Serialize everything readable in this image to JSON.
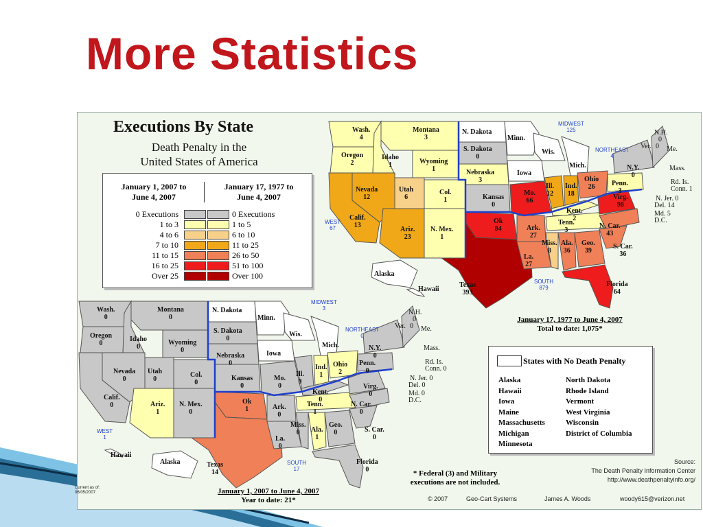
{
  "slide": {
    "title": "More Statistics"
  },
  "chart": {
    "title": "Executions By State",
    "subtitle_l1": "Death Penalty in the",
    "subtitle_l2": "United States of America"
  },
  "legend": {
    "head_left_l1": "January 1, 2007 to",
    "head_left_l2": "June 4, 2007",
    "head_right_l1": "January 17, 1977 to",
    "head_right_l2": "June 4, 2007",
    "rows": [
      {
        "left": "0 Executions",
        "right": "0 Executions",
        "color": "#c8c8c8"
      },
      {
        "left": "1 to 3",
        "right": "1 to 5",
        "color": "#ffffb0"
      },
      {
        "left": "4 to 6",
        "right": "6 to 10",
        "color": "#f7d08a"
      },
      {
        "left": "7 to 10",
        "right": "11 to 25",
        "color": "#f0a818"
      },
      {
        "left": "11 to 15",
        "right": "26 to 50",
        "color": "#f08058"
      },
      {
        "left": "16 to 25",
        "right": "51 to 100",
        "color": "#ee1c1c"
      },
      {
        "left": "Over 25",
        "right": "Over 100",
        "color": "#b00000"
      }
    ]
  },
  "map_top": {
    "states": [
      {
        "n": "Wash.",
        "v": "4"
      },
      {
        "n": "Oregon",
        "v": "2"
      },
      {
        "n": "Idaho",
        "v": "1"
      },
      {
        "n": "Montana",
        "v": "3"
      },
      {
        "n": "Wyoming",
        "v": "1"
      },
      {
        "n": "Nevada",
        "v": "12"
      },
      {
        "n": "Utah",
        "v": "6"
      },
      {
        "n": "Col.",
        "v": "1"
      },
      {
        "n": "Calif.",
        "v": "13"
      },
      {
        "n": "Ariz.",
        "v": "23"
      },
      {
        "n": "N. Mex.",
        "v": "1"
      },
      {
        "n": "N. Dakota",
        "v": ""
      },
      {
        "n": "S. Dakota",
        "v": "0"
      },
      {
        "n": "Nebraska",
        "v": "3"
      },
      {
        "n": "Kansas",
        "v": "0"
      },
      {
        "n": "Ok",
        "v": "84"
      },
      {
        "n": "Texas",
        "v": "393"
      },
      {
        "n": "Minn.",
        "v": ""
      },
      {
        "n": "Iowa",
        "v": ""
      },
      {
        "n": "Wis.",
        "v": ""
      },
      {
        "n": "Mo.",
        "v": "66"
      },
      {
        "n": "Ark.",
        "v": "27"
      },
      {
        "n": "La.",
        "v": "27"
      },
      {
        "n": "Ill.",
        "v": "12"
      },
      {
        "n": "Mich.",
        "v": ""
      },
      {
        "n": "Ind.",
        "v": "18"
      },
      {
        "n": "Ohio",
        "v": "26"
      },
      {
        "n": "Kent.",
        "v": "2"
      },
      {
        "n": "Tenn.",
        "v": "3"
      },
      {
        "n": "Miss.",
        "v": "8"
      },
      {
        "n": "Ala.",
        "v": "36"
      },
      {
        "n": "Geo.",
        "v": "39"
      },
      {
        "n": "Florida",
        "v": "64"
      },
      {
        "n": "S. Car.",
        "v": "36"
      },
      {
        "n": "N. Car.",
        "v": "43"
      },
      {
        "n": "Virg.",
        "v": "98"
      },
      {
        "n": "Penn.",
        "v": "3"
      },
      {
        "n": "N.Y.",
        "v": "0"
      },
      {
        "n": "Vt.",
        "v": ""
      },
      {
        "n": "Alaska",
        "v": ""
      },
      {
        "n": "Hawaii",
        "v": ""
      }
    ],
    "east_list": [
      "N.H.",
      "0",
      "Ver.",
      "0",
      "Me.",
      "Mass.",
      "Rd. Is.",
      "Conn. 1",
      "N. Jer. 0",
      "Del. 14",
      "Md. 5",
      "D.C."
    ],
    "regions": {
      "west": "WEST",
      "west_v": "67",
      "midwest": "MIDWEST",
      "midwest_v": "125",
      "northeast": "NORTHEAST",
      "northeast_v": "4",
      "south": "SOUTH",
      "south_v": "879"
    },
    "date_line": "January 17, 1977 to June 4, 2007",
    "total_line": "Total to date: 1,075*"
  },
  "map_bottom": {
    "states": [
      {
        "n": "Wash.",
        "v": "0"
      },
      {
        "n": "Montana",
        "v": "0"
      },
      {
        "n": "Oregon",
        "v": "0"
      },
      {
        "n": "Idaho",
        "v": "0"
      },
      {
        "n": "Wyoming",
        "v": "0"
      },
      {
        "n": "Nevada",
        "v": "0"
      },
      {
        "n": "Utah",
        "v": "0"
      },
      {
        "n": "Col.",
        "v": "0"
      },
      {
        "n": "Calif.",
        "v": "0"
      },
      {
        "n": "Ariz.",
        "v": "1"
      },
      {
        "n": "N. Mex.",
        "v": "0"
      },
      {
        "n": "N. Dakota",
        "v": ""
      },
      {
        "n": "S. Dakota",
        "v": "0"
      },
      {
        "n": "Nebraska",
        "v": "0"
      },
      {
        "n": "Kansas",
        "v": "0"
      },
      {
        "n": "Ok",
        "v": "1"
      },
      {
        "n": "Texas",
        "v": "14"
      },
      {
        "n": "Minn.",
        "v": ""
      },
      {
        "n": "Iowa",
        "v": ""
      },
      {
        "n": "Wis.",
        "v": ""
      },
      {
        "n": "Mo.",
        "v": "0"
      },
      {
        "n": "Ark.",
        "v": "0"
      },
      {
        "n": "La.",
        "v": "0"
      },
      {
        "n": "Ill.",
        "v": "0"
      },
      {
        "n": "Mich.",
        "v": ""
      },
      {
        "n": "Ind.",
        "v": "1"
      },
      {
        "n": "Ohio",
        "v": "2"
      },
      {
        "n": "Kent.",
        "v": "0"
      },
      {
        "n": "Tenn.",
        "v": "1"
      },
      {
        "n": "Miss.",
        "v": "0"
      },
      {
        "n": "Ala.",
        "v": "1"
      },
      {
        "n": "Geo.",
        "v": "0"
      },
      {
        "n": "Florida",
        "v": "0"
      },
      {
        "n": "S. Car.",
        "v": "0"
      },
      {
        "n": "N. Car.",
        "v": "0"
      },
      {
        "n": "Virg.",
        "v": "0"
      },
      {
        "n": "Penn.",
        "v": "0"
      },
      {
        "n": "N.Y.",
        "v": "0"
      },
      {
        "n": "Vt.",
        "v": ""
      },
      {
        "n": "Alaska",
        "v": ""
      },
      {
        "n": "Hawaii",
        "v": ""
      }
    ],
    "east_list": [
      "N.H.",
      "0",
      "Ver.",
      "0",
      "Me.",
      "Mass.",
      "Rd. Is.",
      "Conn. 0",
      "N. Jer. 0",
      "Del. 0",
      "Md. 0",
      "D.C."
    ],
    "regions": {
      "west": "WEST",
      "west_v": "1",
      "midwest": "MIDWEST",
      "midwest_v": "3",
      "northeast": "NORTHEAST",
      "northeast_v": "0",
      "south": "SOUTH",
      "south_v": "17"
    },
    "date_line": "January 1, 2007 to June 4, 2007",
    "total_line": "Year to date: 21*"
  },
  "no_penalty": {
    "header": "States with No Death Penalty",
    "col1": [
      "Alaska",
      "Hawaii",
      "Iowa",
      "Maine",
      "Massachusetts",
      "Michigan",
      "Minnesota"
    ],
    "col2": [
      "North Dakota",
      "Rhode Island",
      "Vermont",
      "West Virginia",
      "Wisconsin",
      "District of Columbia"
    ]
  },
  "notes": {
    "federal_l1": "* Federal (3) and Military",
    "federal_l2": "executions are not included.",
    "source_l1": "Source:",
    "source_l2": "The Death Penalty Information Center",
    "source_l3": "http://www.deathpenaltyinfo.org/",
    "credit_copy": "© 2007",
    "credit_geo": "Geo-Cart Systems",
    "credit_author": "James A. Woods",
    "credit_email": "woody615@verizon.net",
    "current_l1": "Current as of:",
    "current_l2": "06/05/2007"
  }
}
